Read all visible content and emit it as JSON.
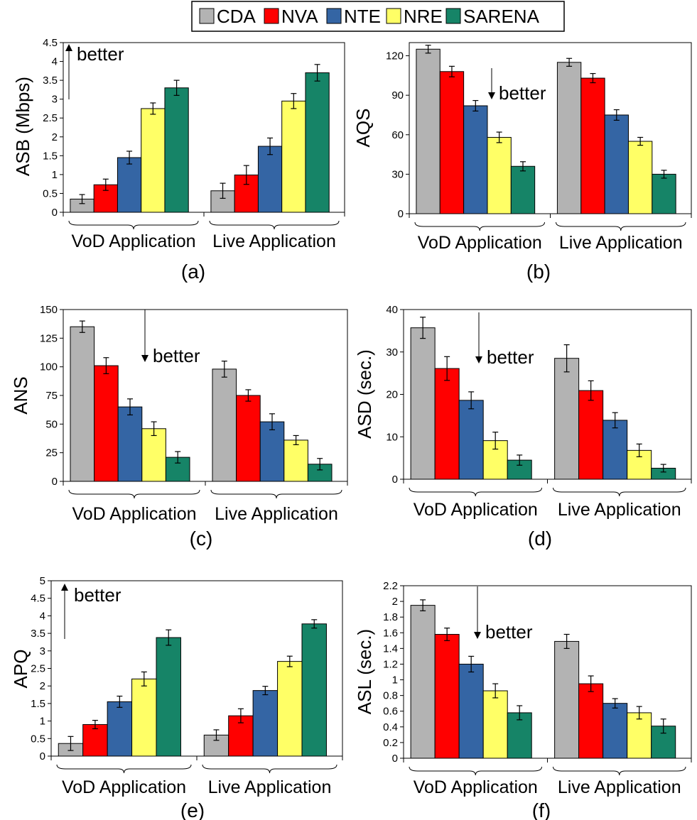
{
  "legend": {
    "entries": [
      {
        "name": "CDA",
        "color": "#b3b3b3"
      },
      {
        "name": "NVA",
        "color": "#ff0000"
      },
      {
        "name": "NTE",
        "color": "#3465a4"
      },
      {
        "name": "NRE",
        "color": "#ffff66"
      },
      {
        "name": "SARENA",
        "color": "#168467"
      }
    ]
  },
  "chart_data": [
    {
      "type": "bar",
      "panel_label": "(a)",
      "ylabel": "ASB (Mbps)",
      "annotation": "better",
      "arrow": "up",
      "categories": [
        "VoD Application",
        "Live Application"
      ],
      "ylim": [
        0,
        4.5
      ],
      "yticks": [
        "0",
        "0.5",
        "1",
        "1.5",
        "2",
        "2.5",
        "3",
        "3.5",
        "4",
        "4.5"
      ],
      "series": [
        {
          "name": "CDA",
          "values": [
            0.35,
            0.57
          ],
          "errors": [
            0.12,
            0.2
          ]
        },
        {
          "name": "NVA",
          "values": [
            0.73,
            0.99
          ],
          "errors": [
            0.15,
            0.25
          ]
        },
        {
          "name": "NTE",
          "values": [
            1.45,
            1.75
          ],
          "errors": [
            0.17,
            0.22
          ]
        },
        {
          "name": "NRE",
          "values": [
            2.75,
            2.95
          ],
          "errors": [
            0.15,
            0.2
          ]
        },
        {
          "name": "SARENA",
          "values": [
            3.3,
            3.7
          ],
          "errors": [
            0.2,
            0.22
          ]
        }
      ]
    },
    {
      "type": "bar",
      "panel_label": "(b)",
      "ylabel": "AQS",
      "annotation": "better",
      "arrow": "down",
      "categories": [
        "VoD Application",
        "Live Application"
      ],
      "ylim": [
        0,
        130
      ],
      "yticks": [
        "0",
        "30",
        "60",
        "90",
        "120"
      ],
      "series": [
        {
          "name": "CDA",
          "values": [
            125,
            115
          ],
          "errors": [
            3,
            3
          ]
        },
        {
          "name": "NVA",
          "values": [
            108,
            103
          ],
          "errors": [
            4,
            3.5
          ]
        },
        {
          "name": "NTE",
          "values": [
            82,
            75
          ],
          "errors": [
            4,
            4
          ]
        },
        {
          "name": "NRE",
          "values": [
            58,
            55
          ],
          "errors": [
            4,
            3
          ]
        },
        {
          "name": "SARENA",
          "values": [
            36,
            30
          ],
          "errors": [
            3.5,
            3
          ]
        }
      ]
    },
    {
      "type": "bar",
      "panel_label": "(c)",
      "ylabel": "ANS",
      "annotation": "better",
      "arrow": "down",
      "categories": [
        "VoD Application",
        "Live Application"
      ],
      "ylim": [
        0,
        150
      ],
      "yticks": [
        "0",
        "25",
        "50",
        "75",
        "100",
        "125",
        "150"
      ],
      "series": [
        {
          "name": "CDA",
          "values": [
            135,
            98
          ],
          "errors": [
            5,
            7
          ]
        },
        {
          "name": "NVA",
          "values": [
            101,
            75
          ],
          "errors": [
            7,
            5
          ]
        },
        {
          "name": "NTE",
          "values": [
            65,
            52
          ],
          "errors": [
            7,
            7
          ]
        },
        {
          "name": "NRE",
          "values": [
            46,
            36
          ],
          "errors": [
            6,
            4
          ]
        },
        {
          "name": "SARENA",
          "values": [
            21,
            15
          ],
          "errors": [
            5,
            5
          ]
        }
      ]
    },
    {
      "type": "bar",
      "panel_label": "(d)",
      "ylabel": "ASD (sec.)",
      "annotation": "better",
      "arrow": "down",
      "categories": [
        "VoD Application",
        "Live Application"
      ],
      "ylim": [
        0,
        40
      ],
      "yticks": [
        "0",
        "10",
        "20",
        "30",
        "40"
      ],
      "series": [
        {
          "name": "CDA",
          "values": [
            35.7,
            28.5
          ],
          "errors": [
            2.5,
            3.2
          ]
        },
        {
          "name": "NVA",
          "values": [
            26.1,
            20.9
          ],
          "errors": [
            2.8,
            2.3
          ]
        },
        {
          "name": "NTE",
          "values": [
            18.6,
            13.9
          ],
          "errors": [
            2.0,
            1.8
          ]
        },
        {
          "name": "NRE",
          "values": [
            9.1,
            6.8
          ],
          "errors": [
            2.0,
            1.5
          ]
        },
        {
          "name": "SARENA",
          "values": [
            4.5,
            2.6
          ],
          "errors": [
            1.2,
            0.9
          ]
        }
      ]
    },
    {
      "type": "bar",
      "panel_label": "(e)",
      "ylabel": "APQ",
      "annotation": "better",
      "arrow": "up",
      "categories": [
        "VoD Application",
        "Live Application"
      ],
      "ylim": [
        0,
        5
      ],
      "yticks": [
        "0",
        "0.5",
        "1",
        "1.5",
        "2",
        "2.5",
        "3",
        "3.5",
        "4",
        "4.5",
        "5"
      ],
      "series": [
        {
          "name": "CDA",
          "values": [
            0.36,
            0.6
          ],
          "errors": [
            0.2,
            0.15
          ]
        },
        {
          "name": "NVA",
          "values": [
            0.9,
            1.15
          ],
          "errors": [
            0.12,
            0.2
          ]
        },
        {
          "name": "NTE",
          "values": [
            1.55,
            1.87
          ],
          "errors": [
            0.16,
            0.12
          ]
        },
        {
          "name": "NRE",
          "values": [
            2.2,
            2.7
          ],
          "errors": [
            0.2,
            0.15
          ]
        },
        {
          "name": "SARENA",
          "values": [
            3.38,
            3.77
          ],
          "errors": [
            0.22,
            0.12
          ]
        }
      ]
    },
    {
      "type": "bar",
      "panel_label": "(f)",
      "ylabel": "ASL (sec.)",
      "annotation": "better",
      "arrow": "down",
      "categories": [
        "VoD Application",
        "Live Application"
      ],
      "ylim": [
        0,
        2.2
      ],
      "yticks": [
        "0",
        "0.2",
        "0.4",
        "0.6",
        "0.8",
        "1",
        "1.2",
        "1.4",
        "1.6",
        "1.8",
        "2",
        "2.2"
      ],
      "series": [
        {
          "name": "CDA",
          "values": [
            1.95,
            1.49
          ],
          "errors": [
            0.07,
            0.09
          ]
        },
        {
          "name": "NVA",
          "values": [
            1.58,
            0.95
          ],
          "errors": [
            0.08,
            0.1
          ]
        },
        {
          "name": "NTE",
          "values": [
            1.2,
            0.7
          ],
          "errors": [
            0.1,
            0.06
          ]
        },
        {
          "name": "NRE",
          "values": [
            0.86,
            0.58
          ],
          "errors": [
            0.09,
            0.08
          ]
        },
        {
          "name": "SARENA",
          "values": [
            0.58,
            0.41
          ],
          "errors": [
            0.09,
            0.09
          ]
        }
      ]
    }
  ]
}
